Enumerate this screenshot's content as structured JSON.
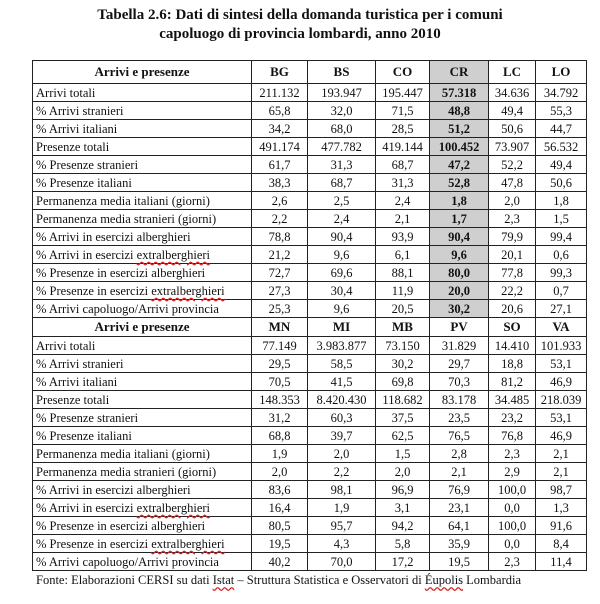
{
  "title": {
    "line1": "Tabella 2.6: Dati di sintesi della domanda turistica per i comuni",
    "line2": "capoluogo di provincia lombardi, anno 2010"
  },
  "header_label": "Arrivi e presenze",
  "row_labels": [
    "Arrivi totali",
    "% Arrivi stranieri",
    "% Arrivi italiani",
    "Presenze totali",
    "% Presenze stranieri",
    "% Presenze italiani",
    "Permanenza media italiani (giorni)",
    "Permanenza media stranieri (giorni)",
    "% Arrivi in esercizi alberghieri",
    "% Arrivi in esercizi extralberghieri",
    "% Presenze in esercizi alberghieri",
    "% Presenze in esercizi extralberghieri",
    "% Arrivi capoluogo/Arrivi provincia"
  ],
  "highlight_color": "#cfcfcf",
  "blocks": [
    {
      "columns": [
        "BG",
        "BS",
        "CO",
        "CR",
        "LC",
        "LO"
      ],
      "highlight_column": "CR",
      "rows": [
        [
          "211.132",
          "193.947",
          "195.447",
          "57.318",
          "34.636",
          "34.792"
        ],
        [
          "65,8",
          "32,0",
          "71,5",
          "48,8",
          "49,4",
          "55,3"
        ],
        [
          "34,2",
          "68,0",
          "28,5",
          "51,2",
          "50,6",
          "44,7"
        ],
        [
          "491.174",
          "477.782",
          "419.144",
          "100.452",
          "73.907",
          "56.532"
        ],
        [
          "61,7",
          "31,3",
          "68,7",
          "47,2",
          "52,2",
          "49,4"
        ],
        [
          "38,3",
          "68,7",
          "31,3",
          "52,8",
          "47,8",
          "50,6"
        ],
        [
          "2,6",
          "2,5",
          "2,4",
          "1,8",
          "2,0",
          "1,8"
        ],
        [
          "2,2",
          "2,4",
          "2,1",
          "1,7",
          "2,3",
          "1,5"
        ],
        [
          "78,8",
          "90,4",
          "93,9",
          "90,4",
          "79,9",
          "99,4"
        ],
        [
          "21,2",
          "9,6",
          "6,1",
          "9,6",
          "20,1",
          "0,6"
        ],
        [
          "72,7",
          "69,6",
          "88,1",
          "80,0",
          "77,8",
          "99,3"
        ],
        [
          "27,3",
          "30,4",
          "11,9",
          "20,0",
          "22,2",
          "0,7"
        ],
        [
          "25,3",
          "9,6",
          "20,5",
          "30,2",
          "20,6",
          "27,1"
        ]
      ]
    },
    {
      "columns": [
        "MN",
        "MI",
        "MB",
        "PV",
        "SO",
        "VA"
      ],
      "rows": [
        [
          "77.149",
          "3.983.877",
          "73.150",
          "31.829",
          "14.410",
          "101.933"
        ],
        [
          "29,5",
          "58,5",
          "30,2",
          "29,7",
          "18,8",
          "53,1"
        ],
        [
          "70,5",
          "41,5",
          "69,8",
          "70,3",
          "81,2",
          "46,9"
        ],
        [
          "148.353",
          "8.420.430",
          "118.682",
          "83.178",
          "34.485",
          "218.039"
        ],
        [
          "31,2",
          "60,3",
          "37,5",
          "23,5",
          "23,2",
          "53,1"
        ],
        [
          "68,8",
          "39,7",
          "62,5",
          "76,5",
          "76,8",
          "46,9"
        ],
        [
          "1,9",
          "2,0",
          "1,5",
          "2,8",
          "2,3",
          "2,1"
        ],
        [
          "2,0",
          "2,2",
          "2,0",
          "2,1",
          "2,9",
          "2,1"
        ],
        [
          "83,6",
          "98,1",
          "96,9",
          "76,9",
          "100,0",
          "98,7"
        ],
        [
          "16,4",
          "1,9",
          "3,1",
          "23,1",
          "0,0",
          "1,3"
        ],
        [
          "80,5",
          "95,7",
          "94,2",
          "64,1",
          "100,0",
          "91,6"
        ],
        [
          "19,5",
          "4,3",
          "5,8",
          "35,9",
          "0,0",
          "8,4"
        ],
        [
          "40,2",
          "70,0",
          "17,2",
          "19,5",
          "2,3",
          "11,4"
        ]
      ]
    }
  ],
  "source": "Fonte: Elaborazioni CERSI su dati Istat – Struttura Statistica e Osservatori di Éupolis Lombardia"
}
